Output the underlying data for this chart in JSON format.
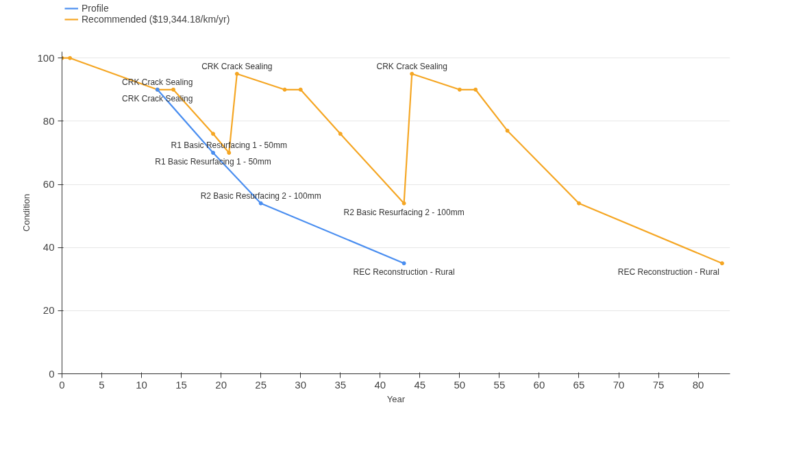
{
  "chart_data": {
    "type": "line",
    "xlabel": "Year",
    "ylabel": "Condition",
    "series": [
      {
        "name": "Profile",
        "color": "#4a8ef0",
        "x": [
          12,
          19,
          25,
          43
        ],
        "values": [
          90,
          70,
          54,
          35
        ]
      },
      {
        "name": "Recommended ($19,344.18/km/yr)",
        "color": "#f5a623",
        "x": [
          0,
          1,
          12,
          14,
          19,
          21,
          22,
          28,
          30,
          35,
          43,
          44,
          50,
          52,
          56,
          65,
          83
        ],
        "values": [
          100,
          100,
          90,
          90,
          76,
          70,
          95,
          90,
          90,
          76,
          54,
          95,
          90,
          90,
          77,
          54,
          35
        ]
      }
    ],
    "annotations": [
      {
        "text": "CRK Crack Sealing",
        "x": 12,
        "y": 90
      },
      {
        "text": "CRK Crack Sealing",
        "x": 12,
        "y": 90
      },
      {
        "text": "CRK Crack Sealing",
        "x": 22,
        "y": 95
      },
      {
        "text": "R1 Basic Resurfacing 1 - 50mm",
        "x": 19,
        "y": 70
      },
      {
        "text": "R1 Basic Resurfacing 1 - 50mm",
        "x": 21,
        "y": 70
      },
      {
        "text": "R2 Basic Resurfacing 2 - 100mm",
        "x": 43,
        "y": 54
      },
      {
        "text": "R2 Basic Resurfacing 2 - 100mm",
        "x": 25,
        "y": 54
      },
      {
        "text": "REC Reconstruction - Rural",
        "x": 43,
        "y": 35
      },
      {
        "text": "CRK Crack Sealing",
        "x": 44,
        "y": 95
      },
      {
        "text": "REC Reconstruction - Rural",
        "x": 83,
        "y": 35
      }
    ],
    "xlim": [
      0,
      84
    ],
    "ylim": [
      0,
      102
    ],
    "xticks": [
      0,
      5,
      10,
      15,
      20,
      25,
      30,
      35,
      40,
      45,
      50,
      55,
      60,
      65,
      70,
      75,
      80
    ],
    "yticks": [
      0,
      20,
      40,
      60,
      80,
      100
    ],
    "grid": "y",
    "legend": "top left",
    "marker": "circle",
    "line_style": "solid"
  }
}
